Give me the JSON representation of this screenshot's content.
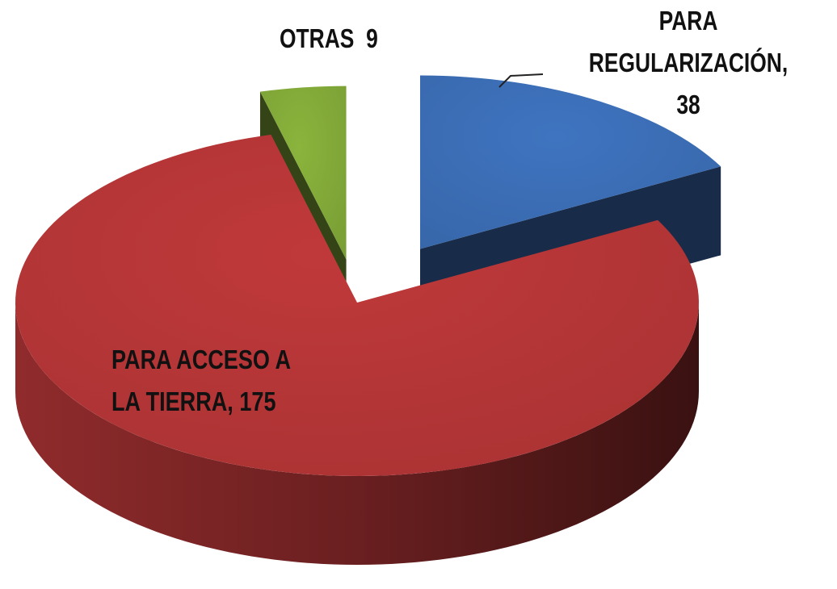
{
  "chart_data": {
    "type": "pie3d",
    "values": [
      38,
      175,
      9
    ],
    "value_labels": [
      "PARA REGULARIZACIÓN, 38",
      "PARA ACCESO A LA TIERRA, 175",
      "OTRAS  9"
    ],
    "colors": [
      "#3f74c0",
      "#c0393a",
      "#8ab43c"
    ]
  }
}
